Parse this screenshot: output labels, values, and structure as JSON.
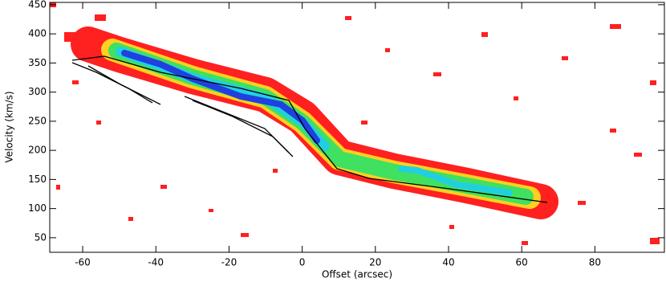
{
  "chart_data": {
    "type": "heatmap",
    "x_label": "Offset (arcsec)",
    "y_label": "Velocity (km/s)",
    "xlim": [
      -69,
      99
    ],
    "ylim": [
      25,
      454
    ],
    "xticks": [
      -60,
      -40,
      -20,
      0,
      20,
      40,
      60,
      80
    ],
    "yticks": [
      50,
      100,
      150,
      200,
      250,
      300,
      350,
      400,
      450
    ]
  }
}
